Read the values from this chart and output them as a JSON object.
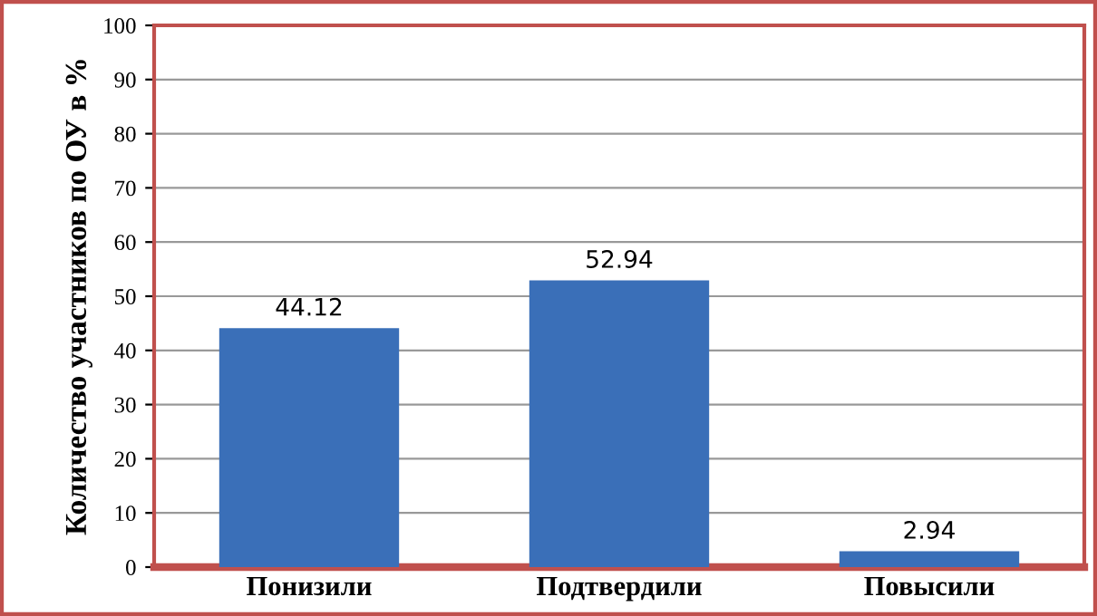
{
  "chart_data": {
    "type": "bar",
    "ylabel": "Количество участников по ОУ в %",
    "categories": [
      "Понизили",
      "Подтвердили",
      "Повысили"
    ],
    "values": [
      44.12,
      52.94,
      2.94
    ],
    "color": "#3a6fb8",
    "ylim": [
      0,
      100
    ],
    "yticks": [
      0,
      10,
      20,
      30,
      40,
      50,
      60,
      70,
      80,
      90,
      100
    ],
    "grid": "y",
    "data_labels": true
  }
}
